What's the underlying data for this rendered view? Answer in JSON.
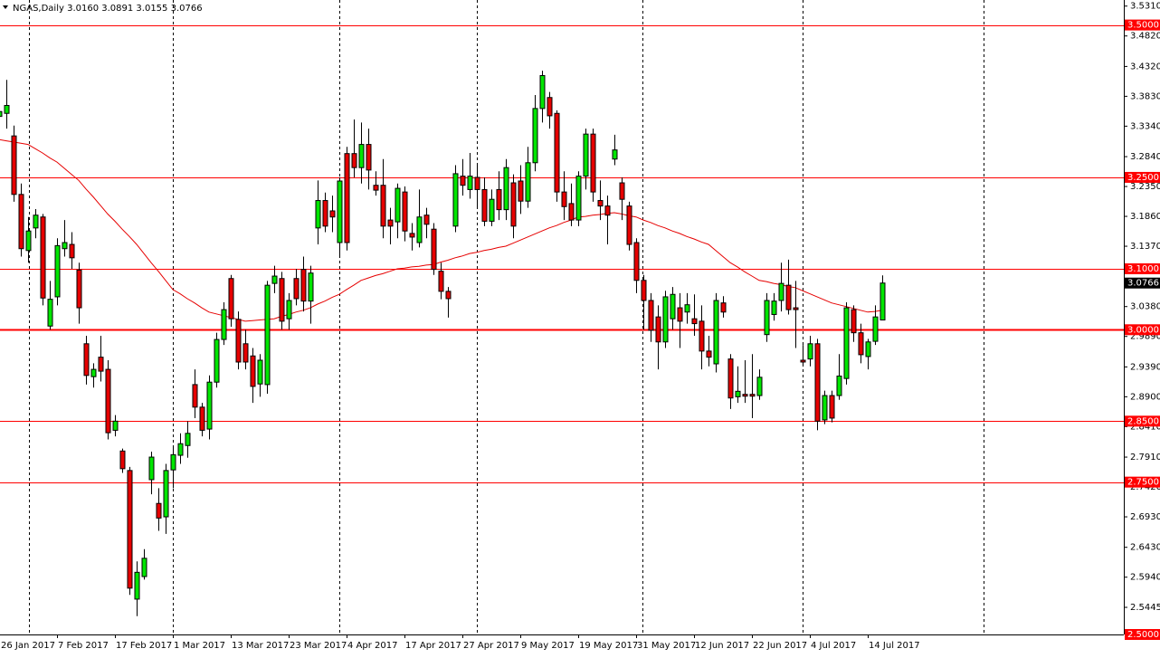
{
  "chart_data": {
    "type": "candlestick",
    "title": "NGAS,Daily  3.0160 3.0891 3.0155 3.0766",
    "categories": [
      "26 Jan 2017",
      null,
      null,
      null,
      null,
      null,
      null,
      null,
      "7 Feb 2017",
      null,
      null,
      null,
      null,
      null,
      null,
      null,
      "17 Feb 2017",
      null,
      null,
      null,
      null,
      null,
      null,
      null,
      "1 Mar 2017",
      null,
      null,
      null,
      null,
      null,
      null,
      null,
      "13 Mar 2017",
      null,
      null,
      null,
      null,
      null,
      null,
      null,
      "23 Mar 2017",
      null,
      null,
      null,
      null,
      null,
      null,
      null,
      "4 Apr 2017",
      null,
      null,
      null,
      null,
      null,
      null,
      null,
      "17 Apr 2017",
      null,
      null,
      null,
      null,
      null,
      null,
      null,
      "27 Apr 2017",
      null,
      null,
      null,
      null,
      null,
      null,
      null,
      "9 May 2017",
      null,
      null,
      null,
      null,
      null,
      null,
      null,
      "19 May 2017",
      null,
      null,
      null,
      null,
      null,
      null,
      null,
      "31 May 2017",
      null,
      null,
      null,
      null,
      null,
      null,
      null,
      "12 Jun 2017",
      null,
      null,
      null,
      null,
      null,
      null,
      null,
      "22 Jun 2017",
      null,
      null,
      null,
      null,
      null,
      null,
      null,
      "4 Jul 2017",
      null,
      null,
      null,
      null,
      null,
      null,
      null,
      "14 Jul 2017",
      null,
      null
    ],
    "open": [
      3.35,
      3.355,
      3.318,
      3.222,
      3.13,
      3.167,
      3.185,
      3.006,
      3.054,
      3.133,
      3.14,
      3.098,
      2.977,
      2.923,
      2.955,
      2.935,
      2.835,
      2.801,
      2.769,
      2.558,
      2.595,
      2.754,
      2.715,
      2.693,
      2.77,
      2.794,
      2.81,
      2.91,
      2.873,
      2.837,
      2.914,
      2.984,
      3.084,
      3.017,
      2.977,
      2.957,
      2.911,
      2.91,
      3.076,
      3.084,
      3.018,
      3.084,
      3.099,
      3.047,
      3.167,
      3.212,
      3.195,
      3.143,
      3.289,
      3.289,
      3.266,
      3.304,
      3.237,
      3.237,
      3.18,
      3.177,
      3.226,
      3.158,
      3.143,
      3.188,
      3.165,
      3.096,
      3.063,
      3.17,
      3.252,
      3.23,
      3.25,
      3.23,
      3.178,
      3.23,
      3.197,
      3.241,
      3.244,
      3.211,
      3.274,
      3.363,
      3.381,
      3.355,
      3.226,
      3.207,
      3.18,
      3.252,
      3.321,
      3.212,
      3.203,
      3.28,
      3.241,
      3.203,
      3.143,
      3.081,
      3.048,
      3.021,
      2.98,
      3.018,
      3.036,
      3.029,
      3.018,
      3.014,
      2.965,
      2.944,
      3.044,
      2.952,
      2.89,
      2.894,
      2.894,
      2.892,
      2.992,
      3.025,
      3.048,
      3.073,
      3.036,
      2.95,
      2.952,
      2.977,
      2.852,
      2.892,
      2.892,
      2.92,
      3.033,
      2.995,
      2.956,
      2.981,
      3.016
    ],
    "high": [
      3.41,
      3.41,
      3.335,
      3.24,
      3.185,
      3.198,
      3.19,
      3.08,
      3.15,
      3.18,
      3.16,
      3.11,
      2.99,
      2.945,
      2.99,
      2.95,
      2.86,
      2.805,
      2.775,
      2.62,
      2.64,
      2.8,
      2.74,
      2.78,
      2.81,
      2.83,
      2.85,
      2.935,
      2.88,
      2.925,
      2.995,
      3.045,
      3.09,
      3.03,
      3.0,
      2.97,
      2.96,
      3.08,
      3.105,
      3.095,
      3.06,
      3.1,
      3.12,
      3.105,
      3.245,
      3.225,
      3.22,
      3.25,
      3.3,
      3.345,
      3.34,
      3.33,
      3.26,
      3.28,
      3.2,
      3.24,
      3.235,
      3.175,
      3.23,
      3.2,
      3.175,
      3.11,
      3.07,
      3.27,
      3.28,
      3.29,
      3.27,
      3.25,
      3.23,
      3.26,
      3.28,
      3.255,
      3.27,
      3.3,
      3.385,
      3.425,
      3.39,
      3.36,
      3.26,
      3.24,
      3.26,
      3.33,
      3.33,
      3.245,
      3.22,
      3.32,
      3.25,
      3.21,
      3.15,
      3.09,
      3.06,
      3.04,
      3.064,
      3.07,
      3.06,
      3.06,
      3.058,
      3.04,
      2.99,
      3.06,
      3.055,
      2.96,
      2.94,
      2.95,
      2.96,
      2.935,
      3.06,
      3.06,
      3.11,
      3.115,
      3.08,
      2.975,
      2.99,
      2.985,
      2.9,
      2.9,
      2.96,
      3.045,
      3.04,
      3.01,
      2.985,
      3.04,
      3.0891
    ],
    "low": [
      3.32,
      3.33,
      3.21,
      3.12,
      3.11,
      3.15,
      3.04,
      3.0,
      3.04,
      3.12,
      3.1,
      3.01,
      2.91,
      2.905,
      2.915,
      2.82,
      2.825,
      2.765,
      2.565,
      2.53,
      2.59,
      2.73,
      2.67,
      2.665,
      2.74,
      2.78,
      2.79,
      2.855,
      2.825,
      2.82,
      2.905,
      2.975,
      3.005,
      2.935,
      2.935,
      2.88,
      2.89,
      2.895,
      3.06,
      3.0,
      3.0,
      3.04,
      3.03,
      3.01,
      3.14,
      3.16,
      3.16,
      3.12,
      3.13,
      3.25,
      3.24,
      3.23,
      3.22,
      3.15,
      3.14,
      3.15,
      3.145,
      3.13,
      3.135,
      3.15,
      3.09,
      3.05,
      3.02,
      3.16,
      3.22,
      3.215,
      3.2,
      3.17,
      3.17,
      3.18,
      3.18,
      3.15,
      3.19,
      3.2,
      3.26,
      3.34,
      3.33,
      3.21,
      3.18,
      3.17,
      3.17,
      3.23,
      3.21,
      3.18,
      3.14,
      3.27,
      3.18,
      3.13,
      3.06,
      3.0,
      2.98,
      2.935,
      2.97,
      3.0,
      2.97,
      3.01,
      2.99,
      2.935,
      2.94,
      2.93,
      3.02,
      2.87,
      2.88,
      2.88,
      2.855,
      2.885,
      2.98,
      3.015,
      3.03,
      3.025,
      2.97,
      2.94,
      2.94,
      2.835,
      2.845,
      2.848,
      2.885,
      2.91,
      2.98,
      2.945,
      2.935,
      2.975,
      3.0155
    ],
    "close": [
      3.358,
      3.368,
      3.222,
      3.133,
      3.162,
      3.188,
      3.052,
      3.05,
      3.138,
      3.143,
      3.118,
      3.036,
      2.925,
      2.935,
      2.932,
      2.831,
      2.85,
      2.772,
      2.576,
      2.602,
      2.625,
      2.791,
      2.691,
      2.769,
      2.795,
      2.813,
      2.83,
      2.873,
      2.835,
      2.914,
      2.984,
      3.033,
      3.018,
      2.947,
      2.947,
      2.907,
      2.95,
      3.073,
      3.088,
      3.014,
      3.048,
      3.051,
      3.047,
      3.093,
      3.212,
      3.17,
      3.185,
      3.244,
      3.143,
      3.266,
      3.304,
      3.262,
      3.229,
      3.17,
      3.17,
      3.232,
      3.162,
      3.152,
      3.185,
      3.173,
      3.099,
      3.063,
      3.051,
      3.256,
      3.237,
      3.252,
      3.23,
      3.178,
      3.214,
      3.197,
      3.266,
      3.17,
      3.211,
      3.274,
      3.363,
      3.417,
      3.351,
      3.226,
      3.202,
      3.18,
      3.252,
      3.321,
      3.226,
      3.203,
      3.188,
      3.295,
      3.214,
      3.14,
      3.081,
      3.048,
      2.999,
      2.98,
      3.054,
      3.058,
      3.014,
      3.041,
      3.01,
      2.965,
      2.955,
      3.048,
      3.029,
      2.888,
      2.899,
      2.891,
      2.891,
      2.922,
      3.048,
      3.047,
      3.076,
      3.033,
      3.033,
      2.947,
      2.977,
      2.85,
      2.892,
      2.855,
      2.924,
      3.036,
      2.995,
      2.959,
      2.98,
      3.021,
      3.0766
    ],
    "up_color": "#00e600",
    "down_color": "#e60000",
    "ma": {
      "color": "#e60000",
      "values": [
        3.312,
        3.31,
        3.308,
        3.306,
        3.304,
        3.297,
        3.29,
        3.282,
        3.275,
        3.265,
        3.255,
        3.245,
        3.231,
        3.218,
        3.204,
        3.19,
        3.178,
        3.165,
        3.153,
        3.14,
        3.125,
        3.11,
        3.096,
        3.081,
        3.066,
        3.059,
        3.051,
        3.044,
        3.036,
        3.029,
        3.026,
        3.023,
        3.02,
        3.017,
        3.014,
        3.015,
        3.016,
        3.017,
        3.018,
        3.022,
        3.025,
        3.029,
        3.032,
        3.036,
        3.042,
        3.047,
        3.053,
        3.058,
        3.066,
        3.073,
        3.081,
        3.085,
        3.089,
        3.092,
        3.096,
        3.1,
        3.101,
        3.103,
        3.104,
        3.106,
        3.107,
        3.111,
        3.114,
        3.118,
        3.121,
        3.125,
        3.127,
        3.13,
        3.132,
        3.135,
        3.137,
        3.142,
        3.147,
        3.152,
        3.157,
        3.162,
        3.167,
        3.171,
        3.176,
        3.18,
        3.185,
        3.186,
        3.188,
        3.189,
        3.191,
        3.192,
        3.19,
        3.187,
        3.185,
        3.18,
        3.176,
        3.171,
        3.167,
        3.162,
        3.158,
        3.153,
        3.149,
        3.144,
        3.14,
        3.13,
        3.12,
        3.11,
        3.103,
        3.095,
        3.088,
        3.081,
        3.079,
        3.076,
        3.074,
        3.071,
        3.069,
        3.064,
        3.059,
        3.054,
        3.049,
        3.044,
        3.041,
        3.038,
        3.035,
        3.032,
        3.029,
        3.03,
        3.032
      ]
    },
    "level_color": "#ff0000",
    "levels": [
      {
        "value": 3.5,
        "label": "3.5000"
      },
      {
        "value": 3.25,
        "label": "3.2500"
      },
      {
        "value": 3.1,
        "label": "3.1000"
      },
      {
        "value": 3.0,
        "label": "3.0000",
        "emphasis": true
      },
      {
        "value": 2.85,
        "label": "2.8500"
      },
      {
        "value": 2.75,
        "label": "2.7500"
      },
      {
        "value": 2.5,
        "label": "2.5000"
      }
    ],
    "last_label": "3.0766",
    "ylim": [
      2.5,
      3.541
    ],
    "yticks": [
      {
        "value": 3.531,
        "label": "3.5310"
      },
      {
        "value": 3.482,
        "label": "3.4820"
      },
      {
        "value": 3.432,
        "label": "3.4320"
      },
      {
        "value": 3.383,
        "label": "3.3830"
      },
      {
        "value": 3.334,
        "label": "3.3340"
      },
      {
        "value": 3.284,
        "label": "3.2840"
      },
      {
        "value": 3.235,
        "label": "3.2350"
      },
      {
        "value": 3.186,
        "label": "3.1860"
      },
      {
        "value": 3.137,
        "label": "3.1370"
      },
      {
        "value": 3.038,
        "label": "3.0380"
      },
      {
        "value": 2.989,
        "label": "2.9890"
      },
      {
        "value": 2.939,
        "label": "2.9390"
      },
      {
        "value": 2.89,
        "label": "2.8900"
      },
      {
        "value": 2.841,
        "label": "2.8410"
      },
      {
        "value": 2.791,
        "label": "2.7910"
      },
      {
        "value": 2.742,
        "label": "2.7420"
      },
      {
        "value": 2.693,
        "label": "2.6930"
      },
      {
        "value": 2.643,
        "label": "2.6430"
      },
      {
        "value": 2.594,
        "label": "2.5940"
      },
      2.5445
    ]
  }
}
